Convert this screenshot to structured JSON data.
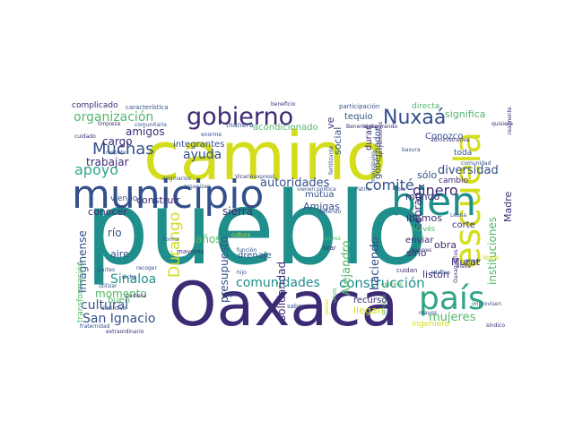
{
  "words": [
    {
      "text": "pueblo",
      "color": "#1f8f8b"
    },
    {
      "text": "camino",
      "color": "#d4dd1c"
    },
    {
      "text": "Oaxaca",
      "color": "#3d2a74"
    },
    {
      "text": "municipio",
      "color": "#34508b"
    },
    {
      "text": "escuela",
      "color": "#d4dd1c"
    },
    {
      "text": "bien",
      "color": "#1f8f8b"
    },
    {
      "text": "país",
      "color": "#2fa586"
    },
    {
      "text": "gobierno",
      "color": "#3d2a74"
    },
    {
      "text": "Nuxaá",
      "color": "#34508b"
    },
    {
      "text": "organización",
      "color": "#52b76a"
    },
    {
      "text": "Muchas",
      "color": "#34508b"
    },
    {
      "text": "apoyo",
      "color": "#2fa586"
    },
    {
      "text": "comunidades",
      "color": "#1f8f8b"
    },
    {
      "text": "construcción",
      "color": "#1f8f8b"
    },
    {
      "text": "autoridades",
      "color": "#34508b"
    },
    {
      "text": "comité",
      "color": "#34508b"
    },
    {
      "text": "dinero",
      "color": "#3d2a74"
    },
    {
      "text": "Sinaloa",
      "color": "#1f8f8b"
    },
    {
      "text": "San Ignacio",
      "color": "#34508b"
    },
    {
      "text": "cultural",
      "color": "#34508b"
    },
    {
      "text": "mujeres",
      "color": "#52b76a"
    },
    {
      "text": "diversidad",
      "color": "#34508b"
    },
    {
      "text": "instituciones",
      "color": "#52b76a"
    },
    {
      "text": "Durango",
      "color": "#d4dd1c"
    },
    {
      "text": "presupuesto",
      "color": "#34508b"
    },
    {
      "text": "solidaridad",
      "color": "#3d2a74"
    },
    {
      "text": "Alejandro",
      "color": "#52b76a"
    },
    {
      "text": "haciendo",
      "color": "#34508b"
    },
    {
      "text": "momento",
      "color": "#52b76a"
    },
    {
      "text": "Imagínense",
      "color": "#34508b"
    },
    {
      "text": "significa",
      "color": "#52b76a"
    },
    {
      "text": "ayuda",
      "color": "#34508b"
    },
    {
      "text": "trabajar",
      "color": "#3d2a74"
    },
    {
      "text": "cargo",
      "color": "#3d2a74"
    },
    {
      "text": "amigos",
      "color": "#3d2a74"
    },
    {
      "text": "social",
      "color": "#34508b"
    },
    {
      "text": "sólo",
      "color": "#34508b"
    },
    {
      "text": "mundo",
      "color": "#3d2a74"
    },
    {
      "text": "Conozco",
      "color": "#34508b"
    },
    {
      "text": "gobernador",
      "color": "#34508b"
    },
    {
      "text": "tequio",
      "color": "#34508b"
    },
    {
      "text": "construir",
      "color": "#3d2a74"
    },
    {
      "text": "sierra",
      "color": "#3d2a74"
    },
    {
      "text": "conocer",
      "color": "#3d2a74"
    },
    {
      "text": "río",
      "color": "#34508b"
    },
    {
      "text": "años",
      "color": "#52b76a"
    },
    {
      "text": "aire",
      "color": "#34508b"
    },
    {
      "text": "Amigas",
      "color": "#34508b"
    },
    {
      "text": "mutua",
      "color": "#34508b"
    },
    {
      "text": "cobran",
      "color": "#3d2a74"
    },
    {
      "text": "Madre",
      "color": "#3d2a74"
    },
    {
      "text": "corte",
      "color": "#3d2a74"
    },
    {
      "text": "obra",
      "color": "#3d2a74"
    },
    {
      "text": "Murat",
      "color": "#3d2a74"
    },
    {
      "text": "listón",
      "color": "#3d2a74"
    },
    {
      "text": "sino",
      "color": "#3d2a74"
    },
    {
      "text": "íbamos",
      "color": "#3d2a74"
    },
    {
      "text": "enviar",
      "color": "#3d2a74"
    },
    {
      "text": "recursos",
      "color": "#3d2a74"
    },
    {
      "text": "llegan",
      "color": "#d4dd1c"
    },
    {
      "text": "ingeniero",
      "color": "#d4dd1c"
    },
    {
      "text": "drenaje",
      "color": "#34508b"
    },
    {
      "text": "integrantes",
      "color": "#34508b"
    },
    {
      "text": "acondicionado",
      "color": "#52b76a"
    },
    {
      "text": "manera",
      "color": "#34508b"
    },
    {
      "text": "complicado",
      "color": "#3d2a74"
    },
    {
      "text": "buen",
      "color": "#52b76a"
    },
    {
      "text": "transformación",
      "color": "#52b76a"
    },
    {
      "text": "toda",
      "color": "#34508b"
    },
    {
      "text": "cambio",
      "color": "#3d2a74"
    },
    {
      "text": "directa",
      "color": "#52b76a"
    },
    {
      "text": "ve",
      "color": "#3d2a74"
    },
    {
      "text": "durar",
      "color": "#3d2a74"
    },
    {
      "text": "viendo",
      "color": "#34508b"
    },
    {
      "text": "mayores",
      "color": "#3d2a74"
    },
    {
      "text": "cuidan",
      "color": "#3d2a74"
    },
    {
      "text": "través",
      "color": "#52b76a"
    },
    {
      "text": "lejos",
      "color": "#d4dd1c"
    },
    {
      "text": "característica",
      "color": "#34508b"
    },
    {
      "text": "participación",
      "color": "#34508b"
    },
    {
      "text": "beneficio",
      "color": "#3d2a74"
    },
    {
      "text": "comunitaria",
      "color": "#34508b"
    },
    {
      "text": "Vicario",
      "color": "#3d2a74"
    },
    {
      "text": "expresó",
      "color": "#34508b"
    },
    {
      "text": "originarios",
      "color": "#34508b"
    },
    {
      "text": "organizan",
      "color": "#34508b"
    },
    {
      "text": "diciendo",
      "color": "#34508b"
    },
    {
      "text": "política",
      "color": "#34508b"
    },
    {
      "text": "Patria",
      "color": "#34508b"
    },
    {
      "text": "vienen",
      "color": "#34508b"
    },
    {
      "text": "solo",
      "color": "#34508b"
    },
    {
      "text": "Leona",
      "color": "#34508b"
    },
    {
      "text": "tirar",
      "color": "#3d2a74"
    },
    {
      "text": "sabe",
      "color": "#34508b"
    },
    {
      "text": "forma",
      "color": "#34508b"
    },
    {
      "text": "recoger",
      "color": "#34508b"
    },
    {
      "text": "aplica",
      "color": "#34508b"
    },
    {
      "text": "pudiera",
      "color": "#3d2a74"
    },
    {
      "text": "cuidado",
      "color": "#3d2a74"
    },
    {
      "text": "limpieza",
      "color": "#3d2a74"
    },
    {
      "text": "inaugurando",
      "color": "#3d2a74"
    },
    {
      "text": "Benemérita",
      "color": "#3d2a74"
    },
    {
      "text": "basura",
      "color": "#34508b"
    },
    {
      "text": "quisiera",
      "color": "#3d2a74"
    },
    {
      "text": "realmente",
      "color": "#3d2a74"
    },
    {
      "text": "administrativa",
      "color": "#3d2a74"
    },
    {
      "text": "comunidad",
      "color": "#34508b"
    },
    {
      "text": "expresé",
      "color": "#52b76a"
    },
    {
      "text": "visité",
      "color": "#3d2a74"
    },
    {
      "text": "poner",
      "color": "#34508b"
    },
    {
      "text": "improvisen",
      "color": "#34508b"
    },
    {
      "text": "síndico",
      "color": "#3d2a74"
    },
    {
      "text": "extraordinario",
      "color": "#3d2a74"
    },
    {
      "text": "fraternidad",
      "color": "#34508b"
    },
    {
      "text": "hijo",
      "color": "#34508b"
    },
    {
      "text": "distintivo",
      "color": "#34508b"
    },
    {
      "text": "utilizar",
      "color": "#34508b"
    },
    {
      "text": "dicha",
      "color": "#34508b"
    },
    {
      "text": "partes",
      "color": "#34508b"
    },
    {
      "text": "respeto",
      "color": "#34508b"
    },
    {
      "text": "enorme",
      "color": "#34508b"
    },
    {
      "text": "mayos",
      "color": "#34508b"
    },
    {
      "text": "adultos",
      "color": "#34508b"
    },
    {
      "text": "jóvenes",
      "color": "#3d2a74"
    },
    {
      "text": "sobres",
      "color": "#52b76a"
    },
    {
      "text": "función",
      "color": "#34508b"
    },
    {
      "text": "cultura",
      "color": "#d4dd1c"
    },
    {
      "text": "fertilizante",
      "color": "#34508b"
    },
    {
      "text": "municipales",
      "color": "#34508b"
    },
    {
      "text": "apoyándonos",
      "color": "#3d2a74"
    },
    {
      "text": "servicio",
      "color": "#52b76a"
    },
    {
      "text": "Oaxaqueños",
      "color": "#3d2a74"
    },
    {
      "text": "unos",
      "color": "#52b76a"
    },
    {
      "text": "ganas",
      "color": "#d4dd1c"
    }
  ]
}
